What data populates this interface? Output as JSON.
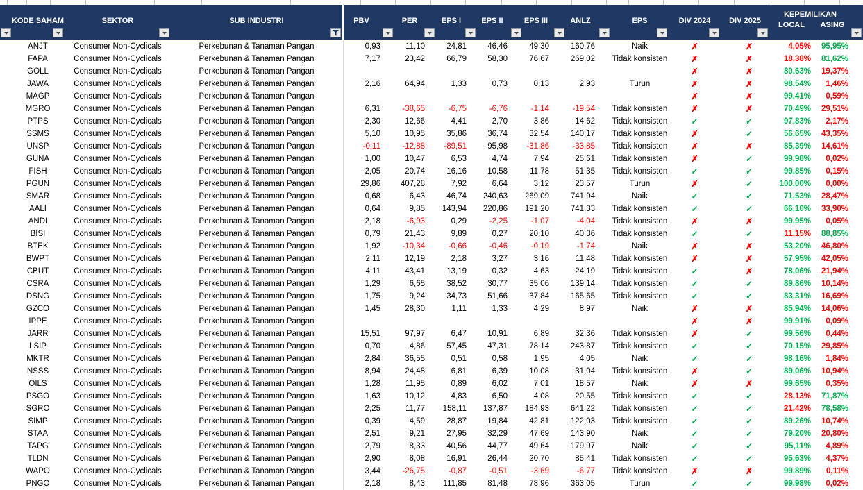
{
  "header": {
    "columns": {
      "kode_saham": "KODE SAHAM",
      "sektor": "SEKTOR",
      "sub_industri": "SUB INDUSTRI",
      "pbv": "PBV",
      "per": "PER",
      "eps1": "EPS I",
      "eps2": "EPS II",
      "eps3": "EPS III",
      "anlz": "ANLZ",
      "eps": "EPS",
      "div2024": "DIV 2024",
      "div2025": "DIV 2025",
      "kepemilikan": "KEPEMILIKAN",
      "local": "LOCAL",
      "asing": "ASING"
    }
  },
  "icons": {
    "check": "✓",
    "cross": "✗",
    "dropdown_arrow": "▼",
    "filter_funnel": "funnel"
  },
  "colors": {
    "header_bg": "#1F3864",
    "header_text": "#FFFFFF",
    "positive_text": "#000000",
    "negative_text": "#FF0000",
    "green": "#00B050",
    "red": "#FF0000"
  },
  "rows": [
    {
      "code": "ANJT",
      "sector": "Consumer Non-Cyclicals",
      "sub_industry": "Perkebunan & Tanaman Pangan",
      "pbv": "0,93",
      "per": "11,10",
      "eps1": "24,81",
      "eps2": "46,46",
      "eps3": "49,30",
      "anlz": "160,76",
      "eps_trend": "Naik",
      "div_2024": "cross",
      "div_2025": "cross",
      "local": "4,05%",
      "asing": "95,95%"
    },
    {
      "code": "FAPA",
      "sector": "Consumer Non-Cyclicals",
      "sub_industry": "Perkebunan & Tanaman Pangan",
      "pbv": "7,17",
      "per": "23,42",
      "eps1": "66,79",
      "eps2": "58,30",
      "eps3": "76,67",
      "anlz": "269,02",
      "eps_trend": "Tidak konsisten",
      "div_2024": "cross",
      "div_2025": "cross",
      "local": "18,38%",
      "asing": "81,62%"
    },
    {
      "code": "GOLL",
      "sector": "Consumer Non-Cyclicals",
      "sub_industry": "Perkebunan & Tanaman Pangan",
      "pbv": "",
      "per": "",
      "eps1": "",
      "eps2": "",
      "eps3": "",
      "anlz": "",
      "eps_trend": "",
      "div_2024": "cross",
      "div_2025": "cross",
      "local": "80,63%",
      "asing": "19,37%"
    },
    {
      "code": "JAWA",
      "sector": "Consumer Non-Cyclicals",
      "sub_industry": "Perkebunan & Tanaman Pangan",
      "pbv": "2,16",
      "per": "64,94",
      "eps1": "1,33",
      "eps2": "0,73",
      "eps3": "0,13",
      "anlz": "2,93",
      "eps_trend": "Turun",
      "div_2024": "cross",
      "div_2025": "cross",
      "local": "98,54%",
      "asing": "1,46%"
    },
    {
      "code": "MAGP",
      "sector": "Consumer Non-Cyclicals",
      "sub_industry": "Perkebunan & Tanaman Pangan",
      "pbv": "",
      "per": "",
      "eps1": "",
      "eps2": "",
      "eps3": "",
      "anlz": "",
      "eps_trend": "",
      "div_2024": "cross",
      "div_2025": "cross",
      "local": "99,41%",
      "asing": "0,59%"
    },
    {
      "code": "MGRO",
      "sector": "Consumer Non-Cyclicals",
      "sub_industry": "Perkebunan & Tanaman Pangan",
      "pbv": "6,31",
      "per": "-38,65",
      "eps1": "-6,75",
      "eps2": "-6,76",
      "eps3": "-1,14",
      "anlz": "-19,54",
      "eps_trend": "Tidak konsisten",
      "div_2024": "cross",
      "div_2025": "cross",
      "local": "70,49%",
      "asing": "29,51%"
    },
    {
      "code": "PTPS",
      "sector": "Consumer Non-Cyclicals",
      "sub_industry": "Perkebunan & Tanaman Pangan",
      "pbv": "2,30",
      "per": "12,66",
      "eps1": "4,41",
      "eps2": "2,70",
      "eps3": "3,86",
      "anlz": "14,62",
      "eps_trend": "Tidak konsisten",
      "div_2024": "check",
      "div_2025": "check",
      "local": "97,83%",
      "asing": "2,17%"
    },
    {
      "code": "SSMS",
      "sector": "Consumer Non-Cyclicals",
      "sub_industry": "Perkebunan & Tanaman Pangan",
      "pbv": "5,10",
      "per": "10,95",
      "eps1": "35,86",
      "eps2": "36,74",
      "eps3": "32,54",
      "anlz": "140,17",
      "eps_trend": "Tidak konsisten",
      "div_2024": "cross",
      "div_2025": "check",
      "local": "56,65%",
      "asing": "43,35%"
    },
    {
      "code": "UNSP",
      "sector": "Consumer Non-Cyclicals",
      "sub_industry": "Perkebunan & Tanaman Pangan",
      "pbv": "-0,11",
      "per": "-12,88",
      "eps1": "-89,51",
      "eps2": "95,98",
      "eps3": "-31,86",
      "anlz": "-33,85",
      "eps_trend": "Tidak konsisten",
      "div_2024": "cross",
      "div_2025": "cross",
      "local": "85,39%",
      "asing": "14,61%"
    },
    {
      "code": "GUNA",
      "sector": "Consumer Non-Cyclicals",
      "sub_industry": "Perkebunan & Tanaman Pangan",
      "pbv": "1,00",
      "per": "10,47",
      "eps1": "6,53",
      "eps2": "4,74",
      "eps3": "7,94",
      "anlz": "25,61",
      "eps_trend": "Tidak konsisten",
      "div_2024": "cross",
      "div_2025": "check",
      "local": "99,98%",
      "asing": "0,02%"
    },
    {
      "code": "FISH",
      "sector": "Consumer Non-Cyclicals",
      "sub_industry": "Perkebunan & Tanaman Pangan",
      "pbv": "2,05",
      "per": "20,74",
      "eps1": "16,16",
      "eps2": "10,58",
      "eps3": "11,78",
      "anlz": "51,35",
      "eps_trend": "Tidak konsisten",
      "div_2024": "check",
      "div_2025": "check",
      "local": "99,85%",
      "asing": "0,15%"
    },
    {
      "code": "PGUN",
      "sector": "Consumer Non-Cyclicals",
      "sub_industry": "Perkebunan & Tanaman Pangan",
      "pbv": "29,86",
      "per": "407,28",
      "eps1": "7,92",
      "eps2": "6,64",
      "eps3": "3,12",
      "anlz": "23,57",
      "eps_trend": "Turun",
      "div_2024": "cross",
      "div_2025": "check",
      "local": "100,00%",
      "asing": "0,00%"
    },
    {
      "code": "SMAR",
      "sector": "Consumer Non-Cyclicals",
      "sub_industry": "Perkebunan & Tanaman Pangan",
      "pbv": "0,68",
      "per": "6,43",
      "eps1": "46,74",
      "eps2": "240,63",
      "eps3": "269,09",
      "anlz": "741,94",
      "eps_trend": "Naik",
      "div_2024": "check",
      "div_2025": "check",
      "local": "71,53%",
      "asing": "28,47%"
    },
    {
      "code": "AALI",
      "sector": "Consumer Non-Cyclicals",
      "sub_industry": "Perkebunan & Tanaman Pangan",
      "pbv": "0,64",
      "per": "9,85",
      "eps1": "143,94",
      "eps2": "220,86",
      "eps3": "191,20",
      "anlz": "741,33",
      "eps_trend": "Tidak konsisten",
      "div_2024": "check",
      "div_2025": "check",
      "local": "66,10%",
      "asing": "33,90%"
    },
    {
      "code": "ANDI",
      "sector": "Consumer Non-Cyclicals",
      "sub_industry": "Perkebunan & Tanaman Pangan",
      "pbv": "2,18",
      "per": "-6,93",
      "eps1": "0,29",
      "eps2": "-2,25",
      "eps3": "-1,07",
      "anlz": "-4,04",
      "eps_trend": "Tidak konsisten",
      "div_2024": "cross",
      "div_2025": "cross",
      "local": "99,95%",
      "asing": "0,05%"
    },
    {
      "code": "BISI",
      "sector": "Consumer Non-Cyclicals",
      "sub_industry": "Perkebunan & Tanaman Pangan",
      "pbv": "0,79",
      "per": "21,43",
      "eps1": "9,89",
      "eps2": "0,27",
      "eps3": "20,10",
      "anlz": "40,36",
      "eps_trend": "Tidak konsisten",
      "div_2024": "check",
      "div_2025": "check",
      "local": "11,15%",
      "asing": "88,85%"
    },
    {
      "code": "BTEK",
      "sector": "Consumer Non-Cyclicals",
      "sub_industry": "Perkebunan & Tanaman Pangan",
      "pbv": "1,92",
      "per": "-10,34",
      "eps1": "-0,66",
      "eps2": "-0,46",
      "eps3": "-0,19",
      "anlz": "-1,74",
      "eps_trend": "Naik",
      "div_2024": "cross",
      "div_2025": "cross",
      "local": "53,20%",
      "asing": "46,80%"
    },
    {
      "code": "BWPT",
      "sector": "Consumer Non-Cyclicals",
      "sub_industry": "Perkebunan & Tanaman Pangan",
      "pbv": "2,11",
      "per": "12,19",
      "eps1": "2,18",
      "eps2": "3,27",
      "eps3": "3,16",
      "anlz": "11,48",
      "eps_trend": "Tidak konsisten",
      "div_2024": "cross",
      "div_2025": "cross",
      "local": "57,95%",
      "asing": "42,05%"
    },
    {
      "code": "CBUT",
      "sector": "Consumer Non-Cyclicals",
      "sub_industry": "Perkebunan & Tanaman Pangan",
      "pbv": "4,11",
      "per": "43,41",
      "eps1": "13,19",
      "eps2": "0,32",
      "eps3": "4,63",
      "anlz": "24,19",
      "eps_trend": "Tidak konsisten",
      "div_2024": "check",
      "div_2025": "cross",
      "local": "78,06%",
      "asing": "21,94%"
    },
    {
      "code": "CSRA",
      "sector": "Consumer Non-Cyclicals",
      "sub_industry": "Perkebunan & Tanaman Pangan",
      "pbv": "1,29",
      "per": "6,65",
      "eps1": "38,52",
      "eps2": "30,77",
      "eps3": "35,06",
      "anlz": "139,14",
      "eps_trend": "Tidak konsisten",
      "div_2024": "check",
      "div_2025": "check",
      "local": "89,86%",
      "asing": "10,14%"
    },
    {
      "code": "DSNG",
      "sector": "Consumer Non-Cyclicals",
      "sub_industry": "Perkebunan & Tanaman Pangan",
      "pbv": "1,75",
      "per": "9,24",
      "eps1": "34,73",
      "eps2": "51,66",
      "eps3": "37,84",
      "anlz": "165,65",
      "eps_trend": "Tidak konsisten",
      "div_2024": "check",
      "div_2025": "check",
      "local": "83,31%",
      "asing": "16,69%"
    },
    {
      "code": "GZCO",
      "sector": "Consumer Non-Cyclicals",
      "sub_industry": "Perkebunan & Tanaman Pangan",
      "pbv": "1,45",
      "per": "28,30",
      "eps1": "1,11",
      "eps2": "1,33",
      "eps3": "4,29",
      "anlz": "8,97",
      "eps_trend": "Naik",
      "div_2024": "cross",
      "div_2025": "cross",
      "local": "85,94%",
      "asing": "14,06%"
    },
    {
      "code": "IPPE",
      "sector": "Consumer Non-Cyclicals",
      "sub_industry": "Perkebunan & Tanaman Pangan",
      "pbv": "",
      "per": "",
      "eps1": "",
      "eps2": "",
      "eps3": "",
      "anlz": "",
      "eps_trend": "",
      "div_2024": "cross",
      "div_2025": "cross",
      "local": "99,91%",
      "asing": "0,09%"
    },
    {
      "code": "JARR",
      "sector": "Consumer Non-Cyclicals",
      "sub_industry": "Perkebunan & Tanaman Pangan",
      "pbv": "15,51",
      "per": "97,97",
      "eps1": "6,47",
      "eps2": "10,91",
      "eps3": "6,89",
      "anlz": "32,36",
      "eps_trend": "Tidak konsisten",
      "div_2024": "cross",
      "div_2025": "check",
      "local": "99,56%",
      "asing": "0,44%"
    },
    {
      "code": "LSIP",
      "sector": "Consumer Non-Cyclicals",
      "sub_industry": "Perkebunan & Tanaman Pangan",
      "pbv": "0,70",
      "per": "4,86",
      "eps1": "57,45",
      "eps2": "47,31",
      "eps3": "78,14",
      "anlz": "243,87",
      "eps_trend": "Tidak konsisten",
      "div_2024": "check",
      "div_2025": "check",
      "local": "70,15%",
      "asing": "29,85%"
    },
    {
      "code": "MKTR",
      "sector": "Consumer Non-Cyclicals",
      "sub_industry": "Perkebunan & Tanaman Pangan",
      "pbv": "2,84",
      "per": "36,55",
      "eps1": "0,51",
      "eps2": "0,58",
      "eps3": "1,95",
      "anlz": "4,05",
      "eps_trend": "Naik",
      "div_2024": "check",
      "div_2025": "check",
      "local": "98,16%",
      "asing": "1,84%"
    },
    {
      "code": "NSSS",
      "sector": "Consumer Non-Cyclicals",
      "sub_industry": "Perkebunan & Tanaman Pangan",
      "pbv": "8,94",
      "per": "24,48",
      "eps1": "6,81",
      "eps2": "6,39",
      "eps3": "10,08",
      "anlz": "31,04",
      "eps_trend": "Tidak konsisten",
      "div_2024": "cross",
      "div_2025": "check",
      "local": "89,06%",
      "asing": "10,94%"
    },
    {
      "code": "OILS",
      "sector": "Consumer Non-Cyclicals",
      "sub_industry": "Perkebunan & Tanaman Pangan",
      "pbv": "1,28",
      "per": "11,95",
      "eps1": "0,89",
      "eps2": "6,02",
      "eps3": "7,01",
      "anlz": "18,57",
      "eps_trend": "Naik",
      "div_2024": "cross",
      "div_2025": "cross",
      "local": "99,65%",
      "asing": "0,35%"
    },
    {
      "code": "PSGO",
      "sector": "Consumer Non-Cyclicals",
      "sub_industry": "Perkebunan & Tanaman Pangan",
      "pbv": "1,63",
      "per": "10,12",
      "eps1": "4,83",
      "eps2": "6,50",
      "eps3": "4,08",
      "anlz": "20,55",
      "eps_trend": "Tidak konsisten",
      "div_2024": "check",
      "div_2025": "check",
      "local": "28,13%",
      "asing": "71,87%"
    },
    {
      "code": "SGRO",
      "sector": "Consumer Non-Cyclicals",
      "sub_industry": "Perkebunan & Tanaman Pangan",
      "pbv": "2,25",
      "per": "11,77",
      "eps1": "158,11",
      "eps2": "137,87",
      "eps3": "184,93",
      "anlz": "641,22",
      "eps_trend": "Tidak konsisten",
      "div_2024": "check",
      "div_2025": "check",
      "local": "21,42%",
      "asing": "78,58%"
    },
    {
      "code": "SIMP",
      "sector": "Consumer Non-Cyclicals",
      "sub_industry": "Perkebunan & Tanaman Pangan",
      "pbv": "0,39",
      "per": "4,59",
      "eps1": "28,87",
      "eps2": "19,84",
      "eps3": "42,81",
      "anlz": "122,03",
      "eps_trend": "Tidak konsisten",
      "div_2024": "check",
      "div_2025": "check",
      "local": "89,26%",
      "asing": "10,74%"
    },
    {
      "code": "STAA",
      "sector": "Consumer Non-Cyclicals",
      "sub_industry": "Perkebunan & Tanaman Pangan",
      "pbv": "2,51",
      "per": "9,21",
      "eps1": "27,95",
      "eps2": "32,29",
      "eps3": "47,69",
      "anlz": "143,90",
      "eps_trend": "Naik",
      "div_2024": "check",
      "div_2025": "check",
      "local": "79,20%",
      "asing": "20,80%"
    },
    {
      "code": "TAPG",
      "sector": "Consumer Non-Cyclicals",
      "sub_industry": "Perkebunan & Tanaman Pangan",
      "pbv": "2,79",
      "per": "8,33",
      "eps1": "40,56",
      "eps2": "44,77",
      "eps3": "49,64",
      "anlz": "179,97",
      "eps_trend": "Naik",
      "div_2024": "check",
      "div_2025": "check",
      "local": "95,11%",
      "asing": "4,89%"
    },
    {
      "code": "TLDN",
      "sector": "Consumer Non-Cyclicals",
      "sub_industry": "Perkebunan & Tanaman Pangan",
      "pbv": "2,90",
      "per": "8,08",
      "eps1": "16,91",
      "eps2": "26,44",
      "eps3": "20,70",
      "anlz": "85,41",
      "eps_trend": "Tidak konsisten",
      "div_2024": "check",
      "div_2025": "check",
      "local": "95,63%",
      "asing": "4,37%"
    },
    {
      "code": "WAPO",
      "sector": "Consumer Non-Cyclicals",
      "sub_industry": "Perkebunan & Tanaman Pangan",
      "pbv": "3,44",
      "per": "-26,75",
      "eps1": "-0,87",
      "eps2": "-0,51",
      "eps3": "-3,69",
      "anlz": "-6,77",
      "eps_trend": "Tidak konsisten",
      "div_2024": "cross",
      "div_2025": "cross",
      "local": "99,89%",
      "asing": "0,11%"
    },
    {
      "code": "PNGO",
      "sector": "Consumer Non-Cyclicals",
      "sub_industry": "Perkebunan & Tanaman Pangan",
      "pbv": "2,18",
      "per": "8,43",
      "eps1": "111,85",
      "eps2": "81,48",
      "eps3": "78,96",
      "anlz": "363,05",
      "eps_trend": "Turun",
      "div_2024": "check",
      "div_2025": "check",
      "local": "99,98%",
      "asing": "0,02%"
    }
  ]
}
